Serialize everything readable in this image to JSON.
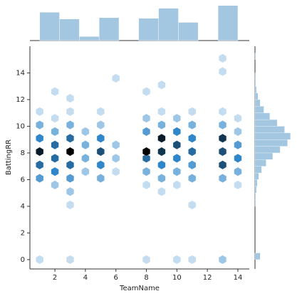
{
  "chart_data": [
    {
      "type": "hexbin",
      "xlabel": "TeamName",
      "ylabel": "BattingRR",
      "xlim": [
        0.36,
        14.75
      ],
      "ylim": [
        -0.7,
        16.0
      ],
      "xticks": [
        2,
        4,
        6,
        8,
        10,
        12,
        14
      ],
      "yticks": [
        0,
        2,
        4,
        6,
        8,
        10,
        12,
        14
      ],
      "colormap": [
        "#e8f1fa",
        "#2f86c9",
        "#000000"
      ],
      "x": [
        1,
        1,
        1,
        1,
        1,
        1,
        1,
        2,
        2,
        2,
        2,
        2,
        2,
        2,
        3,
        3,
        3,
        3,
        3,
        3,
        3,
        3,
        3,
        3,
        4,
        4,
        4,
        4,
        5,
        5,
        5,
        5,
        5,
        5,
        6,
        6,
        6,
        6,
        8,
        8,
        8,
        8,
        8,
        8,
        8,
        8,
        9,
        9,
        9,
        9,
        9,
        9,
        9,
        9,
        10,
        10,
        10,
        10,
        10,
        10,
        10,
        11,
        11,
        11,
        11,
        11,
        11,
        11,
        11,
        13,
        13,
        13,
        13,
        13,
        13,
        13,
        13,
        13,
        14,
        14,
        14,
        14,
        14,
        14
      ],
      "y": [
        6.1,
        7.1,
        8.1,
        9.1,
        10.1,
        11.1,
        0,
        5.6,
        6.6,
        7.6,
        8.6,
        9.6,
        10.6,
        12.6,
        0,
        4.1,
        5.1,
        6.1,
        7.1,
        8.1,
        9.1,
        10.1,
        11.1,
        12.1,
        6.6,
        7.6,
        8.6,
        9.6,
        6.1,
        7.1,
        8.1,
        9.1,
        10.1,
        11.1,
        6.6,
        7.6,
        8.6,
        13.6,
        0,
        5.6,
        6.6,
        7.6,
        8.1,
        9.6,
        10.6,
        12.6,
        5.1,
        6.1,
        7.1,
        8.1,
        9.1,
        10.1,
        11.1,
        13.1,
        0,
        5.6,
        6.6,
        7.6,
        8.6,
        9.6,
        10.6,
        0,
        4.1,
        6.1,
        7.1,
        8.1,
        9.1,
        10.1,
        11.1,
        0,
        6.1,
        7.1,
        8.1,
        9.1,
        10.1,
        11.1,
        14.1,
        15.1,
        5.6,
        6.6,
        7.6,
        8.6,
        9.6,
        10.6
      ],
      "values": [
        4,
        6,
        9,
        5,
        3,
        1,
        1,
        2,
        5,
        6,
        6,
        3,
        1,
        1,
        1,
        1,
        2,
        4,
        6,
        10,
        6,
        3,
        1,
        1,
        2,
        3,
        3,
        2,
        3,
        5,
        7,
        5,
        2,
        1,
        1,
        2,
        2,
        1,
        1,
        1,
        3,
        6,
        10,
        4,
        2,
        1,
        1,
        3,
        5,
        8,
        9,
        3,
        1,
        1,
        1,
        1,
        3,
        5,
        7,
        5,
        2,
        1,
        1,
        3,
        4,
        6,
        5,
        3,
        1,
        2,
        3,
        7,
        7,
        8,
        3,
        1,
        1,
        1,
        1,
        3,
        5,
        4,
        2,
        1
      ]
    },
    {
      "type": "histogram",
      "orientation": "vertical",
      "color": "#a3c6e1",
      "bins": [
        1.0,
        2.3,
        3.6,
        4.9,
        6.2,
        7.5,
        8.8,
        10.1,
        11.4,
        12.7,
        14.0
      ],
      "values": [
        42,
        32,
        6,
        34,
        0,
        33,
        48,
        27,
        0,
        52
      ],
      "ylim": [
        0,
        55
      ]
    },
    {
      "type": "histogram",
      "orientation": "horizontal",
      "color": "#a3c6e1",
      "bins": [
        0,
        0.5,
        1,
        1.5,
        2,
        2.5,
        3,
        3.5,
        4,
        4.5,
        5,
        5.5,
        6,
        6.5,
        7,
        7.5,
        8,
        8.5,
        9,
        9.5,
        10,
        10.5,
        11,
        11.5,
        12,
        12.5,
        13,
        13.5,
        14,
        14.5,
        15,
        15.5
      ],
      "values": [
        7,
        0,
        0,
        0,
        0,
        0,
        0,
        0,
        1,
        1,
        2,
        3,
        5,
        9,
        15,
        24,
        34,
        44,
        48,
        40,
        30,
        20,
        12,
        7,
        4,
        2,
        1,
        1,
        0,
        0,
        1
      ],
      "xlim": [
        0,
        52
      ]
    }
  ]
}
